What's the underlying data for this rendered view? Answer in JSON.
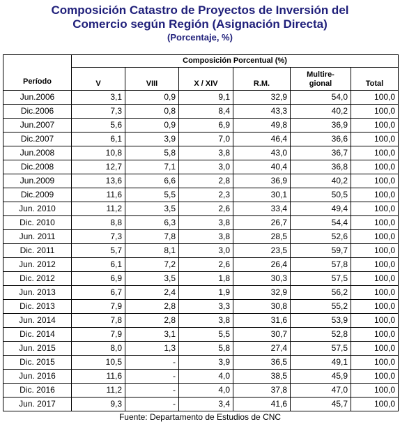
{
  "header": {
    "title_line1": "Composición Catastro de Proyectos de Inversión del",
    "title_line2": "Comercio según Región (Asignación Directa)",
    "subtitle": "(Porcentaje, %)"
  },
  "table": {
    "group_header": "Composición Porcentual (%)",
    "columns": [
      "Período",
      "V",
      "VIII",
      "X / XIV",
      "R.M.",
      "Multire-\ngional",
      "Total"
    ],
    "rows": [
      [
        "Jun.2006",
        "3,1",
        "0,9",
        "9,1",
        "32,9",
        "54,0",
        "100,0"
      ],
      [
        "Dic.2006",
        "7,3",
        "0,8",
        "8,4",
        "43,3",
        "40,2",
        "100,0"
      ],
      [
        "Jun.2007",
        "5,6",
        "0,9",
        "6,9",
        "49,8",
        "36,9",
        "100,0"
      ],
      [
        "Dic.2007",
        "6,1",
        "3,9",
        "7,0",
        "46,4",
        "36,6",
        "100,0"
      ],
      [
        "Jun.2008",
        "10,8",
        "5,8",
        "3,8",
        "43,0",
        "36,7",
        "100,0"
      ],
      [
        "Dic.2008",
        "12,7",
        "7,1",
        "3,0",
        "40,4",
        "36,8",
        "100,0"
      ],
      [
        "Jun.2009",
        "13,6",
        "6,6",
        "2,8",
        "36,9",
        "40,2",
        "100,0"
      ],
      [
        "Dic.2009",
        "11,6",
        "5,5",
        "2,3",
        "30,1",
        "50,5",
        "100,0"
      ],
      [
        "Jun. 2010",
        "11,2",
        "3,5",
        "2,6",
        "33,4",
        "49,4",
        "100,0"
      ],
      [
        "Dic. 2010",
        "8,8",
        "6,3",
        "3,8",
        "26,7",
        "54,4",
        "100,0"
      ],
      [
        "Jun. 2011",
        "7,3",
        "7,8",
        "3,8",
        "28,5",
        "52,6",
        "100,0"
      ],
      [
        "Dic. 2011",
        "5,7",
        "8,1",
        "3,0",
        "23,5",
        "59,7",
        "100,0"
      ],
      [
        "Jun. 2012",
        "6,1",
        "7,2",
        "2,6",
        "26,4",
        "57,8",
        "100,0"
      ],
      [
        "Dic. 2012",
        "6,9",
        "3,5",
        "1,8",
        "30,3",
        "57,5",
        "100,0"
      ],
      [
        "Jun. 2013",
        "6,7",
        "2,4",
        "1,9",
        "32,9",
        "56,2",
        "100,0"
      ],
      [
        "Dic. 2013",
        "7,9",
        "2,8",
        "3,3",
        "30,8",
        "55,2",
        "100,0"
      ],
      [
        "Jun. 2014",
        "7,8",
        "2,8",
        "3,8",
        "31,6",
        "53,9",
        "100,0"
      ],
      [
        "Dic. 2014",
        "7,9",
        "3,1",
        "5,5",
        "30,7",
        "52,8",
        "100,0"
      ],
      [
        "Jun. 2015",
        "8,0",
        "1,3",
        "5,8",
        "27,4",
        "57,5",
        "100,0"
      ],
      [
        "Dic. 2015",
        "10,5",
        "-",
        "3,9",
        "36,5",
        "49,1",
        "100,0"
      ],
      [
        "Jun. 2016",
        "11,6",
        "-",
        "4,0",
        "38,5",
        "45,9",
        "100,0"
      ],
      [
        "Dic. 2016",
        "11,2",
        "-",
        "4,0",
        "37,8",
        "47,0",
        "100,0"
      ],
      [
        "Jun. 2017",
        "9,3",
        "-",
        "3,4",
        "41,6",
        "45,7",
        "100,0"
      ]
    ]
  },
  "footer": {
    "source": "Fuente: Departamento de Estudios de CNC"
  }
}
